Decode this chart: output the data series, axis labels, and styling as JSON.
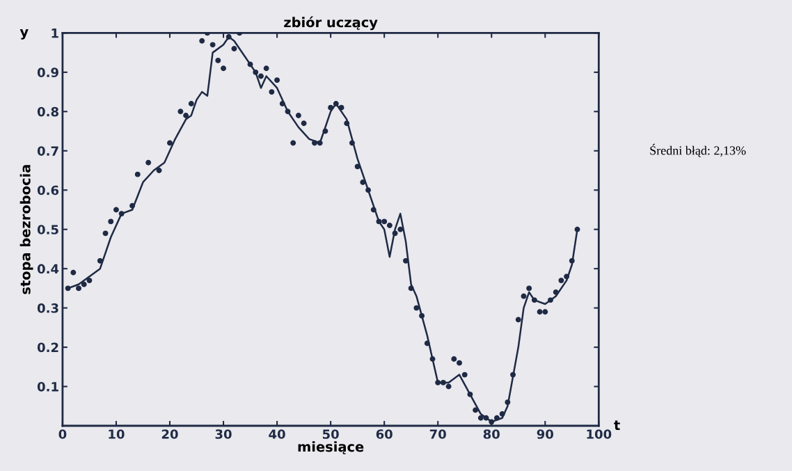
{
  "chart_data": {
    "type": "line",
    "title": "zbiór uczący",
    "xlabel": "miesiące",
    "ylabel": "stopa bezrobocia",
    "annotations": [
      "y",
      "t",
      "Średni błąd: 2,13%"
    ],
    "xlim": [
      0,
      100
    ],
    "ylim": [
      0,
      1
    ],
    "xticks": [
      0,
      10,
      20,
      30,
      40,
      50,
      60,
      70,
      80,
      90,
      100
    ],
    "yticks": [
      0.1,
      0.2,
      0.3,
      0.4,
      0.5,
      0.6,
      0.7,
      0.8,
      0.9,
      1
    ],
    "grid": false,
    "legend": false,
    "series": [
      {
        "color": "#1f2a44",
        "marker": "none",
        "line_style": "solid",
        "x": [
          1,
          3,
          5,
          7,
          9,
          11,
          13,
          15,
          17,
          19,
          21,
          23,
          24,
          25,
          26,
          27,
          28,
          30,
          31,
          32,
          34,
          36,
          37,
          38,
          40,
          42,
          44,
          46,
          48,
          50,
          51,
          53,
          55,
          57,
          59,
          60,
          61,
          62,
          63,
          64,
          65,
          66,
          68,
          70,
          72,
          73,
          74,
          76,
          78,
          80,
          82,
          83,
          85,
          86,
          87,
          88,
          90,
          92,
          94,
          95,
          96
        ],
        "values": [
          0.35,
          0.36,
          0.38,
          0.4,
          0.48,
          0.54,
          0.55,
          0.62,
          0.65,
          0.67,
          0.73,
          0.78,
          0.79,
          0.83,
          0.85,
          0.84,
          0.95,
          0.97,
          0.99,
          0.98,
          0.94,
          0.9,
          0.86,
          0.89,
          0.86,
          0.8,
          0.76,
          0.73,
          0.72,
          0.8,
          0.82,
          0.78,
          0.68,
          0.6,
          0.52,
          0.5,
          0.43,
          0.5,
          0.54,
          0.47,
          0.36,
          0.33,
          0.23,
          0.11,
          0.11,
          0.12,
          0.13,
          0.08,
          0.03,
          0.01,
          0.02,
          0.05,
          0.2,
          0.3,
          0.34,
          0.32,
          0.31,
          0.33,
          0.37,
          0.41,
          0.5
        ]
      },
      {
        "type": "scatter",
        "color": "#1f2a44",
        "marker": "circle",
        "x": [
          1,
          2,
          3,
          4,
          5,
          7,
          8,
          9,
          10,
          11,
          13,
          14,
          16,
          18,
          20,
          22,
          23,
          24,
          26,
          27,
          28,
          29,
          30,
          31,
          32,
          33,
          35,
          36,
          37,
          38,
          39,
          40,
          41,
          42,
          43,
          44,
          45,
          47,
          48,
          49,
          50,
          51,
          52,
          53,
          54,
          55,
          56,
          57,
          58,
          59,
          60,
          61,
          62,
          63,
          64,
          65,
          66,
          67,
          68,
          69,
          70,
          71,
          72,
          73,
          74,
          75,
          76,
          77,
          78,
          79,
          80,
          81,
          82,
          83,
          84,
          85,
          86,
          87,
          88,
          89,
          90,
          91,
          92,
          93,
          94,
          95,
          96
        ],
        "values": [
          0.35,
          0.39,
          0.35,
          0.36,
          0.37,
          0.42,
          0.49,
          0.52,
          0.55,
          0.54,
          0.56,
          0.64,
          0.67,
          0.65,
          0.72,
          0.8,
          0.79,
          0.82,
          0.98,
          1.0,
          0.97,
          0.93,
          0.91,
          0.99,
          0.96,
          1.0,
          0.92,
          0.9,
          0.89,
          0.91,
          0.85,
          0.88,
          0.82,
          0.8,
          0.72,
          0.79,
          0.77,
          0.72,
          0.72,
          0.75,
          0.81,
          0.82,
          0.81,
          0.77,
          0.72,
          0.66,
          0.62,
          0.6,
          0.55,
          0.52,
          0.52,
          0.51,
          0.49,
          0.5,
          0.42,
          0.35,
          0.3,
          0.28,
          0.21,
          0.17,
          0.11,
          0.11,
          0.1,
          0.17,
          0.16,
          0.13,
          0.08,
          0.04,
          0.02,
          0.02,
          0.01,
          0.02,
          0.03,
          0.06,
          0.13,
          0.27,
          0.33,
          0.35,
          0.32,
          0.29,
          0.29,
          0.32,
          0.34,
          0.37,
          0.38,
          0.42,
          0.5
        ]
      }
    ]
  }
}
